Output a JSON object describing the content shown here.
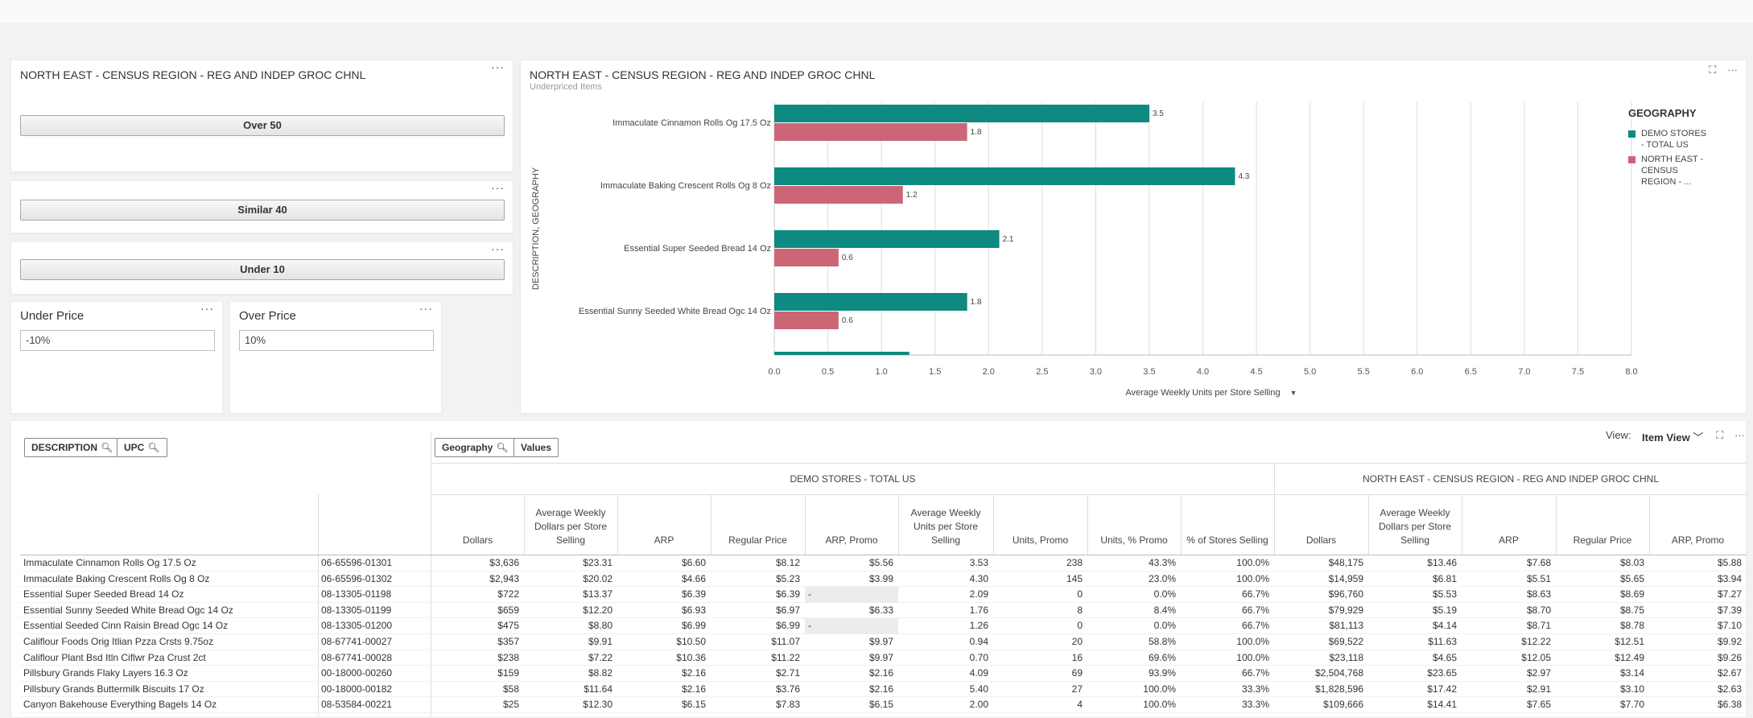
{
  "left_panel": {
    "title": "NORTH EAST - CENSUS REGION - REG AND INDEP GROC CHNL",
    "buttons": [
      "Over 50",
      "Similar 40",
      "Under 10"
    ]
  },
  "under_price": {
    "label": "Under Price",
    "value": "-10%"
  },
  "over_price": {
    "label": "Over Price",
    "value": "10%"
  },
  "menu_glyph": "···",
  "chart_panel": {
    "title": "NORTH EAST - CENSUS REGION - REG AND INDEP GROC CHNL",
    "subtitle": "Underpriced Items",
    "expand_icon": "⛶",
    "legend_title": "GEOGRAPHY",
    "legend": [
      {
        "label": "DEMO STORES - TOTAL US",
        "color": "#0e8a80"
      },
      {
        "label": "NORTH EAST - CENSUS REGION - ...",
        "color": "#cc6677"
      }
    ]
  },
  "chart_data": {
    "type": "bar",
    "orientation": "horizontal",
    "ylabel": "DESCRIPTION, GEOGRAPHY",
    "xlabel": "Average Weekly Units per Store Selling",
    "xlim": [
      0,
      8
    ],
    "xticks": [
      "0.0",
      "0.5",
      "1.0",
      "1.5",
      "2.0",
      "2.5",
      "3.0",
      "3.5",
      "4.0",
      "4.5",
      "5.0",
      "5.5",
      "6.0",
      "6.5",
      "7.0",
      "7.5",
      "8.0"
    ],
    "grid": true,
    "legend_position": "right",
    "categories": [
      "Immaculate Cinnamon Rolls Og 17.5 Oz",
      "Immaculate Baking Crescent Rolls Og 8 Oz",
      "Essential Super Seeded Bread 14 Oz",
      "Essential Sunny Seeded White Bread Ogc 14 Oz"
    ],
    "series": [
      {
        "name": "DEMO STORES - TOTAL US",
        "color": "#0e8a80",
        "values": [
          3.5,
          4.3,
          2.1,
          1.8
        ],
        "labels": [
          "3.5",
          "4.3",
          "2.1",
          "1.8"
        ]
      },
      {
        "name": "NORTH EAST - CENSUS REGION - ...",
        "color": "#cc6677",
        "values": [
          1.8,
          1.2,
          0.6,
          0.6
        ],
        "labels": [
          "1.8",
          "1.2",
          "0.6",
          "0.6"
        ]
      }
    ],
    "partial_next_bar": {
      "series": "DEMO STORES - TOTAL US",
      "value": 1.26
    }
  },
  "table": {
    "row_pills": [
      "DESCRIPTION",
      "UPC"
    ],
    "col_pills": [
      "Geography",
      "Values"
    ],
    "view_label": "View:",
    "view_value": "Item View",
    "groups": [
      "DEMO STORES - TOTAL US",
      "NORTH EAST - CENSUS REGION - REG AND INDEP GROC CHNL"
    ],
    "columns": [
      "Dollars",
      "Average Weekly Dollars per Store Selling",
      "ARP",
      "Regular Price",
      "ARP, Promo",
      "Average Weekly Units per Store Selling",
      "Units, Promo",
      "Units, % Promo",
      "% of Stores Selling",
      "Dollars",
      "Average Weekly Dollars per Store Selling",
      "ARP",
      "Regular Price",
      "ARP, Promo"
    ],
    "rows": [
      {
        "desc": "Immaculate Cinnamon Rolls Og 17.5 Oz",
        "upc": "06-65596-01301",
        "vals": [
          "$3,636",
          "$23.31",
          "$6.60",
          "$8.12",
          "$5.56",
          "3.53",
          "238",
          "43.3%",
          "100.0%",
          "$48,175",
          "$13.46",
          "$7.68",
          "$8.03",
          "$5.88"
        ]
      },
      {
        "desc": "Immaculate Baking Crescent Rolls Og 8 Oz",
        "upc": "06-65596-01302",
        "vals": [
          "$2,943",
          "$20.02",
          "$4.66",
          "$5.23",
          "$3.99",
          "4.30",
          "145",
          "23.0%",
          "100.0%",
          "$14,959",
          "$6.81",
          "$5.51",
          "$5.65",
          "$3.94"
        ]
      },
      {
        "desc": "Essential Super Seeded Bread 14 Oz",
        "upc": "08-13305-01198",
        "vals": [
          "$722",
          "$13.37",
          "$6.39",
          "$6.39",
          "-",
          "2.09",
          "0",
          "0.0%",
          "66.7%",
          "$96,760",
          "$5.53",
          "$8.63",
          "$8.69",
          "$7.27"
        ]
      },
      {
        "desc": "Essential Sunny Seeded White Bread Ogc 14 Oz",
        "upc": "08-13305-01199",
        "vals": [
          "$659",
          "$12.20",
          "$6.93",
          "$6.97",
          "$6.33",
          "1.76",
          "8",
          "8.4%",
          "66.7%",
          "$79,929",
          "$5.19",
          "$8.70",
          "$8.75",
          "$7.39"
        ]
      },
      {
        "desc": "Essential Seeded Cinn Raisin Bread Ogc 14 Oz",
        "upc": "08-13305-01200",
        "vals": [
          "$475",
          "$8.80",
          "$6.99",
          "$6.99",
          "-",
          "1.26",
          "0",
          "0.0%",
          "66.7%",
          "$81,113",
          "$4.14",
          "$8.71",
          "$8.78",
          "$7.10"
        ]
      },
      {
        "desc": "Califlour Foods Orig Itlian Pzza Crsts 9.75oz",
        "upc": "08-67741-00027",
        "vals": [
          "$357",
          "$9.91",
          "$10.50",
          "$11.07",
          "$9.97",
          "0.94",
          "20",
          "58.8%",
          "100.0%",
          "$69,522",
          "$11.63",
          "$12.22",
          "$12.51",
          "$9.92"
        ]
      },
      {
        "desc": "Califlour Plant Bsd Itln Ciflwr Pza Crust 2ct",
        "upc": "08-67741-00028",
        "vals": [
          "$238",
          "$7.22",
          "$10.36",
          "$11.22",
          "$9.97",
          "0.70",
          "16",
          "69.6%",
          "100.0%",
          "$23,118",
          "$4.65",
          "$12.05",
          "$12.49",
          "$9.26"
        ]
      },
      {
        "desc": "Pillsbury Grands Flaky Layers 16.3 Oz",
        "upc": "00-18000-00260",
        "vals": [
          "$159",
          "$8.82",
          "$2.16",
          "$2.71",
          "$2.16",
          "4.09",
          "69",
          "93.9%",
          "66.7%",
          "$2,504,768",
          "$23.65",
          "$2.97",
          "$3.14",
          "$2.67"
        ]
      },
      {
        "desc": "Pillsbury Grands Buttermilk Biscuits 17 Oz",
        "upc": "00-18000-00182",
        "vals": [
          "$58",
          "$11.64",
          "$2.16",
          "$3.76",
          "$2.16",
          "5.40",
          "27",
          "100.0%",
          "33.3%",
          "$1,828,596",
          "$17.42",
          "$2.91",
          "$3.10",
          "$2.63"
        ]
      },
      {
        "desc": "Canyon Bakehouse Everything Bagels 14 Oz",
        "upc": "08-53584-00221",
        "vals": [
          "$25",
          "$12.30",
          "$6.15",
          "$7.83",
          "$6.15",
          "2.00",
          "4",
          "100.0%",
          "33.3%",
          "$109,666",
          "$14.41",
          "$7.65",
          "$7.70",
          "$6.38"
        ]
      }
    ]
  }
}
